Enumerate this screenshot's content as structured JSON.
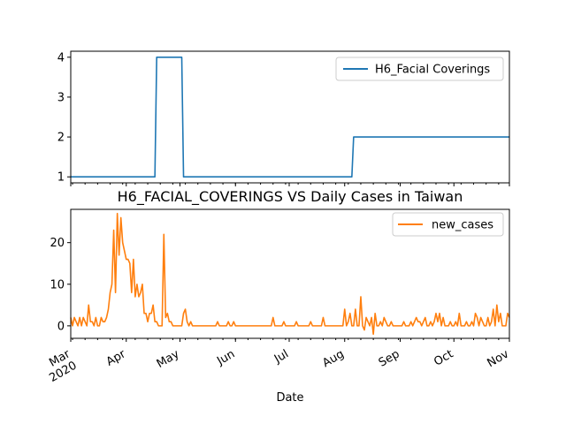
{
  "chart_data": [
    {
      "type": "line",
      "title": "",
      "xlabel": "",
      "ylabel": "",
      "xlim": [
        "2020-03-01",
        "2020-11-01"
      ],
      "ylim": [
        0.85,
        4.15
      ],
      "yticks": [
        1,
        2,
        3,
        4
      ],
      "grid": false,
      "legend": "top-right",
      "series": [
        {
          "name": "H6_Facial Coverings",
          "color": "#1f77b4",
          "points": [
            [
              "2020-03-01",
              1
            ],
            [
              "2020-04-17",
              1
            ],
            [
              "2020-04-18",
              4
            ],
            [
              "2020-05-02",
              4
            ],
            [
              "2020-05-03",
              1
            ],
            [
              "2020-08-05",
              1
            ],
            [
              "2020-08-06",
              2
            ],
            [
              "2020-11-01",
              2
            ]
          ]
        }
      ]
    },
    {
      "type": "line",
      "title": "H6_FACIAL_COVERINGS VS Daily Cases in Taiwan",
      "xlabel": "Date",
      "ylabel": "",
      "xlim": [
        "2020-03-01",
        "2020-11-01"
      ],
      "ylim": [
        -3,
        28
      ],
      "yticks": [
        0,
        10,
        20
      ],
      "xticks": [
        "2020-03-01",
        "2020-04-01",
        "2020-05-01",
        "2020-06-01",
        "2020-07-01",
        "2020-08-01",
        "2020-09-01",
        "2020-10-01",
        "2020-11-01"
      ],
      "xtick_labels": [
        "Mar\n2020",
        "Apr",
        "May",
        "Jun",
        "Jul",
        "Aug",
        "Sep",
        "Oct",
        "Nov"
      ],
      "grid": false,
      "legend": "top-right",
      "series": [
        {
          "name": "new_cases",
          "color": "#ff7f0e",
          "points": [
            [
              "2020-03-01",
              2
            ],
            [
              "2020-03-02",
              0
            ],
            [
              "2020-03-03",
              2
            ],
            [
              "2020-03-04",
              1
            ],
            [
              "2020-03-05",
              0
            ],
            [
              "2020-03-06",
              2
            ],
            [
              "2020-03-07",
              0
            ],
            [
              "2020-03-08",
              2
            ],
            [
              "2020-03-09",
              1
            ],
            [
              "2020-03-10",
              0
            ],
            [
              "2020-03-11",
              5
            ],
            [
              "2020-03-12",
              1
            ],
            [
              "2020-03-13",
              1
            ],
            [
              "2020-03-14",
              0
            ],
            [
              "2020-03-15",
              2
            ],
            [
              "2020-03-16",
              0
            ],
            [
              "2020-03-17",
              0
            ],
            [
              "2020-03-18",
              2
            ],
            [
              "2020-03-19",
              1
            ],
            [
              "2020-03-20",
              1
            ],
            [
              "2020-03-21",
              2
            ],
            [
              "2020-03-22",
              4
            ],
            [
              "2020-03-23",
              8
            ],
            [
              "2020-03-24",
              10
            ],
            [
              "2020-03-25",
              23
            ],
            [
              "2020-03-26",
              8
            ],
            [
              "2020-03-27",
              27
            ],
            [
              "2020-03-28",
              17
            ],
            [
              "2020-03-29",
              26
            ],
            [
              "2020-03-30",
              20
            ],
            [
              "2020-03-31",
              18
            ],
            [
              "2020-04-01",
              16
            ],
            [
              "2020-04-02",
              16
            ],
            [
              "2020-04-03",
              15
            ],
            [
              "2020-04-04",
              8
            ],
            [
              "2020-04-05",
              16
            ],
            [
              "2020-04-06",
              7
            ],
            [
              "2020-04-07",
              10
            ],
            [
              "2020-04-08",
              7
            ],
            [
              "2020-04-09",
              8
            ],
            [
              "2020-04-10",
              10
            ],
            [
              "2020-04-11",
              3
            ],
            [
              "2020-04-12",
              3
            ],
            [
              "2020-04-13",
              1
            ],
            [
              "2020-04-14",
              3
            ],
            [
              "2020-04-15",
              3
            ],
            [
              "2020-04-16",
              5
            ],
            [
              "2020-04-17",
              1
            ],
            [
              "2020-04-18",
              1
            ],
            [
              "2020-04-19",
              0
            ],
            [
              "2020-04-20",
              0
            ],
            [
              "2020-04-21",
              0
            ],
            [
              "2020-04-22",
              22
            ],
            [
              "2020-04-23",
              2
            ],
            [
              "2020-04-24",
              3
            ],
            [
              "2020-04-25",
              1
            ],
            [
              "2020-04-26",
              1
            ],
            [
              "2020-04-27",
              0
            ],
            [
              "2020-04-28",
              0
            ],
            [
              "2020-04-29",
              0
            ],
            [
              "2020-04-30",
              0
            ],
            [
              "2020-05-01",
              0
            ],
            [
              "2020-05-02",
              0
            ],
            [
              "2020-05-03",
              3
            ],
            [
              "2020-05-04",
              4
            ],
            [
              "2020-05-05",
              1
            ],
            [
              "2020-05-06",
              0
            ],
            [
              "2020-05-07",
              1
            ],
            [
              "2020-05-08",
              0
            ],
            [
              "2020-05-09",
              0
            ],
            [
              "2020-05-10",
              0
            ],
            [
              "2020-05-11",
              0
            ],
            [
              "2020-05-12",
              0
            ],
            [
              "2020-05-13",
              0
            ],
            [
              "2020-05-14",
              0
            ],
            [
              "2020-05-15",
              0
            ],
            [
              "2020-05-16",
              0
            ],
            [
              "2020-05-17",
              0
            ],
            [
              "2020-05-18",
              0
            ],
            [
              "2020-05-19",
              0
            ],
            [
              "2020-05-20",
              0
            ],
            [
              "2020-05-21",
              0
            ],
            [
              "2020-05-22",
              1
            ],
            [
              "2020-05-23",
              0
            ],
            [
              "2020-05-24",
              0
            ],
            [
              "2020-05-25",
              0
            ],
            [
              "2020-05-26",
              0
            ],
            [
              "2020-05-27",
              0
            ],
            [
              "2020-05-28",
              1
            ],
            [
              "2020-05-29",
              0
            ],
            [
              "2020-05-30",
              0
            ],
            [
              "2020-05-31",
              1
            ],
            [
              "2020-06-01",
              0
            ],
            [
              "2020-06-02",
              0
            ],
            [
              "2020-06-03",
              0
            ],
            [
              "2020-06-04",
              0
            ],
            [
              "2020-06-05",
              0
            ],
            [
              "2020-06-06",
              0
            ],
            [
              "2020-06-07",
              0
            ],
            [
              "2020-06-08",
              0
            ],
            [
              "2020-06-09",
              0
            ],
            [
              "2020-06-10",
              0
            ],
            [
              "2020-06-11",
              0
            ],
            [
              "2020-06-12",
              0
            ],
            [
              "2020-06-13",
              0
            ],
            [
              "2020-06-14",
              0
            ],
            [
              "2020-06-15",
              0
            ],
            [
              "2020-06-16",
              0
            ],
            [
              "2020-06-17",
              0
            ],
            [
              "2020-06-18",
              0
            ],
            [
              "2020-06-19",
              0
            ],
            [
              "2020-06-20",
              0
            ],
            [
              "2020-06-21",
              0
            ],
            [
              "2020-06-22",
              2
            ],
            [
              "2020-06-23",
              0
            ],
            [
              "2020-06-24",
              0
            ],
            [
              "2020-06-25",
              0
            ],
            [
              "2020-06-26",
              0
            ],
            [
              "2020-06-27",
              0
            ],
            [
              "2020-06-28",
              1
            ],
            [
              "2020-06-29",
              0
            ],
            [
              "2020-06-30",
              0
            ],
            [
              "2020-07-01",
              0
            ],
            [
              "2020-07-02",
              0
            ],
            [
              "2020-07-03",
              0
            ],
            [
              "2020-07-04",
              0
            ],
            [
              "2020-07-05",
              1
            ],
            [
              "2020-07-06",
              0
            ],
            [
              "2020-07-07",
              0
            ],
            [
              "2020-07-08",
              0
            ],
            [
              "2020-07-09",
              0
            ],
            [
              "2020-07-10",
              0
            ],
            [
              "2020-07-11",
              0
            ],
            [
              "2020-07-12",
              0
            ],
            [
              "2020-07-13",
              1
            ],
            [
              "2020-07-14",
              0
            ],
            [
              "2020-07-15",
              0
            ],
            [
              "2020-07-16",
              0
            ],
            [
              "2020-07-17",
              0
            ],
            [
              "2020-07-18",
              0
            ],
            [
              "2020-07-19",
              0
            ],
            [
              "2020-07-20",
              2
            ],
            [
              "2020-07-21",
              0
            ],
            [
              "2020-07-22",
              0
            ],
            [
              "2020-07-23",
              0
            ],
            [
              "2020-07-24",
              0
            ],
            [
              "2020-07-25",
              0
            ],
            [
              "2020-07-26",
              0
            ],
            [
              "2020-07-27",
              0
            ],
            [
              "2020-07-28",
              0
            ],
            [
              "2020-07-29",
              0
            ],
            [
              "2020-07-30",
              0
            ],
            [
              "2020-07-31",
              0
            ],
            [
              "2020-08-01",
              4
            ],
            [
              "2020-08-02",
              0
            ],
            [
              "2020-08-03",
              1
            ],
            [
              "2020-08-04",
              3
            ],
            [
              "2020-08-05",
              0
            ],
            [
              "2020-08-06",
              0
            ],
            [
              "2020-08-07",
              4
            ],
            [
              "2020-08-08",
              0
            ],
            [
              "2020-08-09",
              0
            ],
            [
              "2020-08-10",
              7
            ],
            [
              "2020-08-11",
              0
            ],
            [
              "2020-08-12",
              -1
            ],
            [
              "2020-08-13",
              2
            ],
            [
              "2020-08-14",
              1
            ],
            [
              "2020-08-15",
              0
            ],
            [
              "2020-08-16",
              2
            ],
            [
              "2020-08-17",
              -2
            ],
            [
              "2020-08-18",
              3
            ],
            [
              "2020-08-19",
              0
            ],
            [
              "2020-08-20",
              0
            ],
            [
              "2020-08-21",
              1
            ],
            [
              "2020-08-22",
              0
            ],
            [
              "2020-08-23",
              2
            ],
            [
              "2020-08-24",
              1
            ],
            [
              "2020-08-25",
              0
            ],
            [
              "2020-08-26",
              0
            ],
            [
              "2020-08-27",
              1
            ],
            [
              "2020-08-28",
              0
            ],
            [
              "2020-08-29",
              0
            ],
            [
              "2020-08-30",
              0
            ],
            [
              "2020-08-31",
              0
            ],
            [
              "2020-09-01",
              0
            ],
            [
              "2020-09-02",
              0
            ],
            [
              "2020-09-03",
              1
            ],
            [
              "2020-09-04",
              0
            ],
            [
              "2020-09-05",
              0
            ],
            [
              "2020-09-06",
              0
            ],
            [
              "2020-09-07",
              1
            ],
            [
              "2020-09-08",
              0
            ],
            [
              "2020-09-09",
              1
            ],
            [
              "2020-09-10",
              2
            ],
            [
              "2020-09-11",
              1
            ],
            [
              "2020-09-12",
              1
            ],
            [
              "2020-09-13",
              0
            ],
            [
              "2020-09-14",
              1
            ],
            [
              "2020-09-15",
              2
            ],
            [
              "2020-09-16",
              0
            ],
            [
              "2020-09-17",
              0
            ],
            [
              "2020-09-18",
              1
            ],
            [
              "2020-09-19",
              0
            ],
            [
              "2020-09-20",
              1
            ],
            [
              "2020-09-21",
              3
            ],
            [
              "2020-09-22",
              1
            ],
            [
              "2020-09-23",
              3
            ],
            [
              "2020-09-24",
              0
            ],
            [
              "2020-09-25",
              2
            ],
            [
              "2020-09-26",
              0
            ],
            [
              "2020-09-27",
              0
            ],
            [
              "2020-09-28",
              0
            ],
            [
              "2020-09-29",
              1
            ],
            [
              "2020-09-30",
              0
            ],
            [
              "2020-10-01",
              0
            ],
            [
              "2020-10-02",
              1
            ],
            [
              "2020-10-03",
              0
            ],
            [
              "2020-10-04",
              3
            ],
            [
              "2020-10-05",
              0
            ],
            [
              "2020-10-06",
              0
            ],
            [
              "2020-10-07",
              0
            ],
            [
              "2020-10-08",
              1
            ],
            [
              "2020-10-09",
              0
            ],
            [
              "2020-10-10",
              0
            ],
            [
              "2020-10-11",
              1
            ],
            [
              "2020-10-12",
              0
            ],
            [
              "2020-10-13",
              3
            ],
            [
              "2020-10-14",
              2
            ],
            [
              "2020-10-15",
              0
            ],
            [
              "2020-10-16",
              2
            ],
            [
              "2020-10-17",
              1
            ],
            [
              "2020-10-18",
              0
            ],
            [
              "2020-10-19",
              0
            ],
            [
              "2020-10-20",
              2
            ],
            [
              "2020-10-21",
              0
            ],
            [
              "2020-10-22",
              1
            ],
            [
              "2020-10-23",
              4
            ],
            [
              "2020-10-24",
              0
            ],
            [
              "2020-10-25",
              5
            ],
            [
              "2020-10-26",
              1
            ],
            [
              "2020-10-27",
              3
            ],
            [
              "2020-10-28",
              0
            ],
            [
              "2020-10-29",
              0
            ],
            [
              "2020-10-30",
              0
            ],
            [
              "2020-10-31",
              3
            ],
            [
              "2020-11-01",
              2
            ]
          ]
        }
      ]
    }
  ]
}
